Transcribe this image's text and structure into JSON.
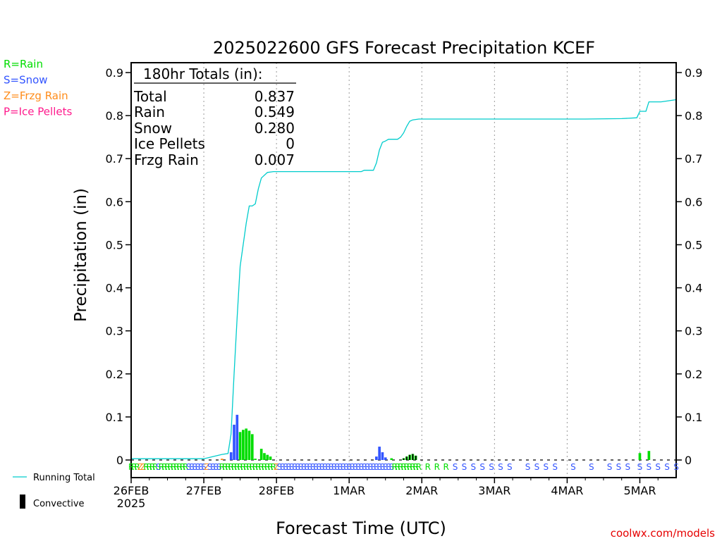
{
  "title": "2025022600 GFS Forecast Precipitation KCEF",
  "ylabel": "Precipitation (in)",
  "xlabel": "Forecast Time (UTC)",
  "year_label": "2025",
  "watermark": "coolwx.com/models",
  "ptype_legend": [
    {
      "code": "R",
      "text": "R=Rain",
      "color": "#00dd00"
    },
    {
      "code": "S",
      "text": "S=Snow",
      "color": "#3355ff"
    },
    {
      "code": "Z",
      "text": "Z=Frzg Rain",
      "color": "#ff8c1a"
    },
    {
      "code": "P",
      "text": "P=Ice Pellets",
      "color": "#ff1a8c"
    }
  ],
  "bottom_legend": {
    "running_total": "Running Total",
    "convective": "Convective",
    "running_total_color": "#00cccc",
    "convective_color": "#000000"
  },
  "totals_box": {
    "heading": "180hr Totals (in):",
    "rows": [
      {
        "label": "Total",
        "value": "0.837"
      },
      {
        "label": "Rain",
        "value": "0.549"
      },
      {
        "label": "Snow",
        "value": "0.280"
      },
      {
        "label": "Ice Pellets",
        "value": "0"
      },
      {
        "label": "Frzg Rain",
        "value": "0.007"
      }
    ]
  },
  "chart_data": {
    "type": "bar",
    "title": "2025022600 GFS Forecast Precipitation KCEF",
    "xlabel": "Forecast Time (UTC)",
    "ylabel": "Precipitation (in)",
    "ylim": [
      0,
      0.92
    ],
    "xlim_hours": [
      0,
      180
    ],
    "yticks": [
      0,
      0.1,
      0.2,
      0.3,
      0.4,
      0.5,
      0.6,
      0.7,
      0.8,
      0.9
    ],
    "ytick_labels": [
      "0",
      "0.1",
      "0.2",
      "0.3",
      "0.4",
      "0.5",
      "0.6",
      "0.7",
      "0.8",
      "0.9"
    ],
    "x_day_ticks": [
      {
        "hour": 0,
        "label": "26FEB"
      },
      {
        "hour": 24,
        "label": "27FEB"
      },
      {
        "hour": 48,
        "label": "28FEB"
      },
      {
        "hour": 72,
        "label": "1MAR"
      },
      {
        "hour": 96,
        "label": "2MAR"
      },
      {
        "hour": 120,
        "label": "3MAR"
      },
      {
        "hour": 144,
        "label": "4MAR"
      },
      {
        "hour": 168,
        "label": "5MAR"
      }
    ],
    "grid": "vertical dotted at each day",
    "bars": [
      {
        "hour": 30,
        "value": 0.003,
        "type": "Z"
      },
      {
        "hour": 33,
        "value": 0.018,
        "type": "S"
      },
      {
        "hour": 34,
        "value": 0.082,
        "type": "S"
      },
      {
        "hour": 35,
        "value": 0.105,
        "type": "S"
      },
      {
        "hour": 36,
        "value": 0.065,
        "type": "R"
      },
      {
        "hour": 37,
        "value": 0.07,
        "type": "R"
      },
      {
        "hour": 38,
        "value": 0.073,
        "type": "R"
      },
      {
        "hour": 39,
        "value": 0.068,
        "type": "R"
      },
      {
        "hour": 40,
        "value": 0.06,
        "type": "R"
      },
      {
        "hour": 41,
        "value": 0.003,
        "type": "R"
      },
      {
        "hour": 43,
        "value": 0.026,
        "type": "R"
      },
      {
        "hour": 44,
        "value": 0.016,
        "type": "R"
      },
      {
        "hour": 45,
        "value": 0.012,
        "type": "R"
      },
      {
        "hour": 46,
        "value": 0.008,
        "type": "R"
      },
      {
        "hour": 81,
        "value": 0.008,
        "type": "S"
      },
      {
        "hour": 82,
        "value": 0.031,
        "type": "S"
      },
      {
        "hour": 83,
        "value": 0.018,
        "type": "S"
      },
      {
        "hour": 84,
        "value": 0.006,
        "type": "S"
      },
      {
        "hour": 86,
        "value": 0.004,
        "type": "R"
      },
      {
        "hour": 90,
        "value": 0.004,
        "type": "R"
      },
      {
        "hour": 91,
        "value": 0.008,
        "type": "R"
      },
      {
        "hour": 92,
        "value": 0.012,
        "type": "R"
      },
      {
        "hour": 93,
        "value": 0.014,
        "type": "R"
      },
      {
        "hour": 94,
        "value": 0.01,
        "type": "R"
      },
      {
        "hour": 168,
        "value": 0.016,
        "type": "R"
      },
      {
        "hour": 171,
        "value": 0.021,
        "type": "R"
      }
    ],
    "convective": [
      {
        "hour": 90,
        "value": 0.004
      },
      {
        "hour": 91,
        "value": 0.008
      },
      {
        "hour": 92,
        "value": 0.012
      },
      {
        "hour": 93,
        "value": 0.014
      },
      {
        "hour": 94,
        "value": 0.01
      }
    ],
    "running_total": [
      [
        0,
        0.003
      ],
      [
        24,
        0.003
      ],
      [
        30,
        0.013
      ],
      [
        32,
        0.015
      ],
      [
        33,
        0.06
      ],
      [
        34,
        0.2
      ],
      [
        35,
        0.33
      ],
      [
        36,
        0.45
      ],
      [
        37,
        0.5
      ],
      [
        38,
        0.55
      ],
      [
        39,
        0.59
      ],
      [
        40,
        0.59
      ],
      [
        41,
        0.595
      ],
      [
        42,
        0.63
      ],
      [
        43,
        0.655
      ],
      [
        45,
        0.668
      ],
      [
        47,
        0.67
      ],
      [
        48,
        0.67
      ],
      [
        60,
        0.67
      ],
      [
        72,
        0.67
      ],
      [
        76,
        0.67
      ],
      [
        77,
        0.673
      ],
      [
        80,
        0.673
      ],
      [
        81,
        0.69
      ],
      [
        82,
        0.72
      ],
      [
        83,
        0.738
      ],
      [
        84,
        0.741
      ],
      [
        85,
        0.745
      ],
      [
        88,
        0.745
      ],
      [
        89,
        0.75
      ],
      [
        90,
        0.76
      ],
      [
        91,
        0.775
      ],
      [
        92,
        0.787
      ],
      [
        93,
        0.79
      ],
      [
        95,
        0.792
      ],
      [
        100,
        0.792
      ],
      [
        120,
        0.792
      ],
      [
        150,
        0.792
      ],
      [
        162,
        0.793
      ],
      [
        167,
        0.795
      ],
      [
        168,
        0.81
      ],
      [
        170,
        0.81
      ],
      [
        171,
        0.832
      ],
      [
        175,
        0.832
      ],
      [
        180,
        0.837
      ]
    ],
    "ptype_strip_hours": [
      0,
      1,
      2,
      3,
      4,
      5,
      6,
      7,
      8,
      9,
      10,
      11,
      12,
      13,
      14,
      15,
      16,
      17,
      18,
      19,
      20,
      21,
      22,
      23,
      24,
      25,
      26,
      27,
      28,
      29,
      30,
      31,
      32,
      33,
      34,
      35,
      36,
      37,
      38,
      39,
      40,
      41,
      42,
      43,
      44,
      45,
      46,
      47,
      48,
      49,
      50,
      51,
      52,
      53,
      54,
      55,
      56,
      57,
      58,
      59,
      60,
      61,
      62,
      63,
      64,
      65,
      66,
      67,
      68,
      69,
      70,
      71,
      72,
      73,
      74,
      75,
      76,
      77,
      78,
      79,
      80,
      81,
      82,
      83,
      84,
      85,
      86,
      87,
      88,
      89,
      90,
      91,
      92,
      93,
      94,
      95,
      98,
      101,
      104,
      107,
      110,
      113,
      116,
      119,
      122,
      125,
      131,
      134,
      137,
      140,
      146,
      152,
      158,
      161,
      164,
      168,
      171,
      174,
      177,
      180
    ],
    "ptype_strip": "RRRZZRRRRSRRRRRRRRRSSSSSSZSSSSRRRRRRRRRRRRRRRRRRZSSSSSSSSSSSSSSSSSSSSSSSSSSSSSSSSSSSSSSRRRRRRRRRRRRSSSSSSSSSSSSSSSSSSSSSRRRRRR"
  }
}
